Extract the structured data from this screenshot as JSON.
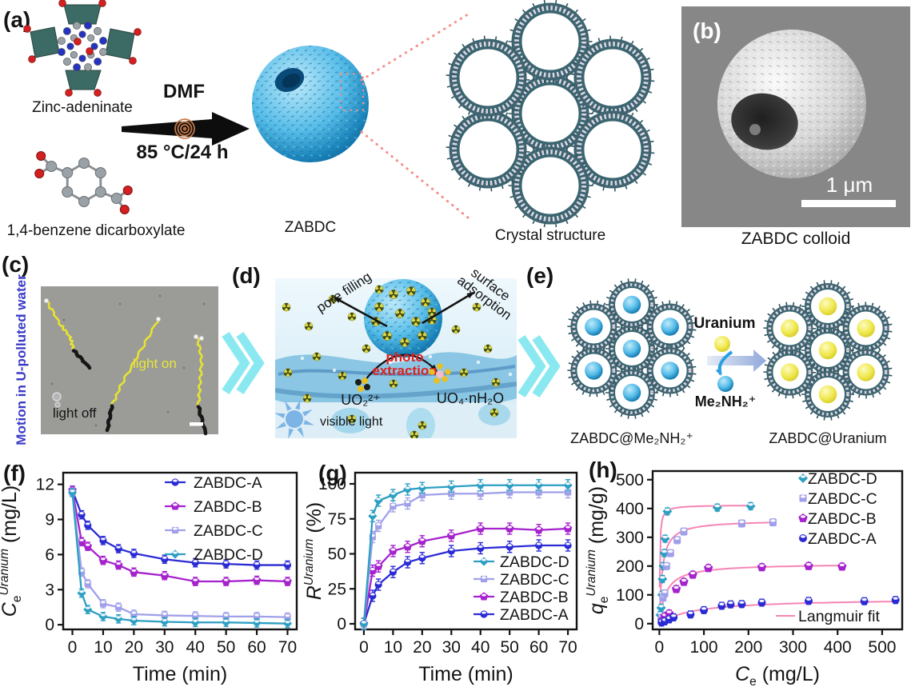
{
  "figure": {
    "background": "#ffffff"
  },
  "panels": {
    "a": {
      "label": "(a)",
      "reactant_top": "Zinc-adeninate",
      "reactant_bottom": "1,4-benzene dicarboxylate",
      "arrow_top": "DMF",
      "arrow_bottom": "85 °C/24 h",
      "product": "ZABDC",
      "crystal_caption": "Crystal structure"
    },
    "b": {
      "label": "(b)",
      "scale_bar": "1 μm",
      "caption": "ZABDC colloid"
    },
    "c": {
      "label": "(c)",
      "side_label": "Motion in U-polluted water",
      "light_on": "light on",
      "light_off": "light off"
    },
    "d": {
      "label": "(d)",
      "annotation_left": "pore filling",
      "annotation_right_line1": "surface",
      "annotation_right_line2": "adsorption",
      "photo_line1": "photo",
      "photo_line2": "extraction",
      "species_left": "UO₂²⁺",
      "species_right": "UO₄·nH₂O",
      "light_label": "visible light"
    },
    "e": {
      "label": "(e)",
      "ion_in": "Uranium",
      "ion_out": "Me₂NH₂⁺",
      "caption_left": "ZABDC@Me₂NH₂⁺",
      "caption_right": "ZABDC@Uranium"
    }
  },
  "colors": {
    "zabdc_a": "#2b2bd5",
    "zabdc_b": "#a522cd",
    "zabdc_c": "#a0a0ea",
    "zabdc_d": "#2d9fc3",
    "langmuir_fit": "#f585b5",
    "sphere_blue": "#2ba0d8",
    "chevron": "#8ae9f0",
    "uranium_yellow": "#efe84e"
  },
  "chart_data": [
    {
      "id": "f",
      "panel_label": "(f)",
      "type": "line",
      "x": [
        0,
        3,
        5,
        10,
        15,
        20,
        30,
        40,
        50,
        60,
        70
      ],
      "series": [
        {
          "name": "ZABDC-A",
          "color": "#2b2bd5",
          "marker": "circle",
          "values": [
            11.5,
            9.4,
            8.5,
            7.2,
            6.5,
            6.1,
            5.6,
            5.3,
            5.2,
            5.1,
            5.1
          ]
        },
        {
          "name": "ZABDC-B",
          "color": "#a522cd",
          "marker": "pentagon",
          "values": [
            11.5,
            7.1,
            6.7,
            5.5,
            5.1,
            4.5,
            4.2,
            3.7,
            3.7,
            3.8,
            3.7
          ]
        },
        {
          "name": "ZABDC-C",
          "color": "#a0a0ea",
          "marker": "square",
          "values": [
            11.3,
            4.5,
            3.5,
            1.8,
            1.5,
            0.9,
            0.8,
            0.75,
            0.7,
            0.7,
            0.65
          ]
        },
        {
          "name": "ZABDC-D",
          "color": "#2d9fc3",
          "marker": "diamond",
          "values": [
            11.3,
            2.7,
            1.3,
            0.7,
            0.5,
            0.35,
            0.25,
            0.2,
            0.2,
            0.15,
            0.1
          ]
        }
      ],
      "err": 0.35,
      "xlabel_parts": [
        {
          "t": "Time (min)"
        }
      ],
      "ylabel_parts": [
        {
          "t": "C",
          "i": true
        },
        {
          "t": "e",
          "pos": "sub"
        },
        {
          "t": "Uranium",
          "pos": "sup",
          "i": true
        },
        {
          "t": " (mg/L)"
        }
      ],
      "xticks": [
        0,
        10,
        20,
        30,
        40,
        50,
        60,
        70
      ],
      "yticks": [
        0,
        3,
        6,
        9,
        12
      ],
      "xlim": [
        -3,
        73
      ],
      "ylim": [
        -0.4,
        13
      ],
      "legend": {
        "order": [
          0,
          1,
          2,
          3
        ],
        "line": true
      }
    },
    {
      "id": "g",
      "panel_label": "(g)",
      "type": "line",
      "x": [
        0,
        3,
        5,
        10,
        15,
        20,
        30,
        40,
        50,
        60,
        70
      ],
      "series": [
        {
          "name": "ZABDC-A",
          "color": "#2b2bd5",
          "marker": "circle",
          "values": [
            0,
            20,
            28,
            37,
            44,
            47,
            52,
            54,
            55,
            56,
            56
          ]
        },
        {
          "name": "ZABDC-B",
          "color": "#a522cd",
          "marker": "pentagon",
          "values": [
            0,
            38,
            41,
            52,
            55,
            59,
            63,
            68,
            68,
            67,
            68
          ]
        },
        {
          "name": "ZABDC-C",
          "color": "#a0a0ea",
          "marker": "square",
          "values": [
            0,
            62,
            70,
            84,
            86,
            92,
            93,
            93,
            94,
            94,
            94
          ]
        },
        {
          "name": "ZABDC-D",
          "color": "#2d9fc3",
          "marker": "diamond",
          "values": [
            0,
            77,
            88,
            92,
            96,
            97,
            98,
            99,
            99,
            99,
            99
          ]
        }
      ],
      "err": 4,
      "xlabel_parts": [
        {
          "t": "Time (min)"
        }
      ],
      "ylabel_parts": [
        {
          "t": "R",
          "i": true
        },
        {
          "t": "Uranium",
          "pos": "sup",
          "i": true
        },
        {
          "t": " (%)"
        }
      ],
      "xticks": [
        0,
        10,
        20,
        30,
        40,
        50,
        60,
        70
      ],
      "yticks": [
        0,
        25,
        50,
        75,
        100
      ],
      "xlim": [
        -3,
        73
      ],
      "ylim": [
        -4,
        108
      ],
      "legend": {
        "order": [
          3,
          2,
          1,
          0
        ],
        "line": true
      }
    },
    {
      "id": "h",
      "panel_label": "(h)",
      "type": "scatter",
      "series": [
        {
          "name": "ZABDC-D",
          "color": "#2d9fc3",
          "marker": "diamond",
          "points": [
            [
              2,
              30
            ],
            [
              4,
              55
            ],
            [
              6,
              100
            ],
            [
              7,
              155
            ],
            [
              9,
              200
            ],
            [
              11,
              245
            ],
            [
              13,
              295
            ],
            [
              18,
              390
            ],
            [
              130,
              403
            ],
            [
              205,
              408
            ]
          ],
          "fit": {
            "qm": 412,
            "k": 1.1
          }
        },
        {
          "name": "ZABDC-C",
          "color": "#a0a0ea",
          "marker": "square",
          "points": [
            [
              5,
              20
            ],
            [
              8,
              90
            ],
            [
              12,
              105
            ],
            [
              16,
              200
            ],
            [
              25,
              245
            ],
            [
              40,
              290
            ],
            [
              55,
              320
            ],
            [
              185,
              348
            ],
            [
              255,
              352
            ]
          ],
          "fit": {
            "qm": 360,
            "k": 0.16
          }
        },
        {
          "name": "ZABDC-B",
          "color": "#a522cd",
          "marker": "pentagon",
          "points": [
            [
              6,
              10
            ],
            [
              12,
              25
            ],
            [
              22,
              35
            ],
            [
              38,
              120
            ],
            [
              55,
              145
            ],
            [
              75,
              170
            ],
            [
              110,
              193
            ],
            [
              230,
              196
            ],
            [
              335,
              200
            ],
            [
              410,
              198
            ]
          ],
          "fit": {
            "qm": 209,
            "k": 0.07
          }
        },
        {
          "name": "ZABDC-A",
          "color": "#2b2bd5",
          "marker": "circle",
          "points": [
            [
              5,
              4
            ],
            [
              12,
              8
            ],
            [
              22,
              15
            ],
            [
              32,
              22
            ],
            [
              70,
              32
            ],
            [
              100,
              47
            ],
            [
              140,
              62
            ],
            [
              160,
              67
            ],
            [
              185,
              68
            ],
            [
              230,
              73
            ],
            [
              335,
              79
            ],
            [
              460,
              78
            ],
            [
              530,
              82
            ]
          ],
          "fit": {
            "qm": 88,
            "k": 0.013
          }
        }
      ],
      "err": 12,
      "fit_label": "Langmuir fit",
      "fit_color": "#f585b5",
      "xlabel_parts": [
        {
          "t": "C",
          "i": true
        },
        {
          "t": "e",
          "pos": "sub"
        },
        {
          "t": " (mg/L)"
        }
      ],
      "ylabel_parts": [
        {
          "t": "q",
          "i": true
        },
        {
          "t": "e",
          "pos": "sub"
        },
        {
          "t": "Uranium",
          "pos": "sup",
          "i": true
        },
        {
          "t": " (mg/g)"
        }
      ],
      "xticks": [
        0,
        100,
        200,
        300,
        400,
        500
      ],
      "yticks": [
        0,
        100,
        200,
        300,
        400,
        500
      ],
      "xlim": [
        -15,
        545
      ],
      "ylim": [
        -20,
        530
      ],
      "legend": {
        "order": [
          0,
          1,
          2,
          3
        ],
        "line": false
      }
    }
  ]
}
